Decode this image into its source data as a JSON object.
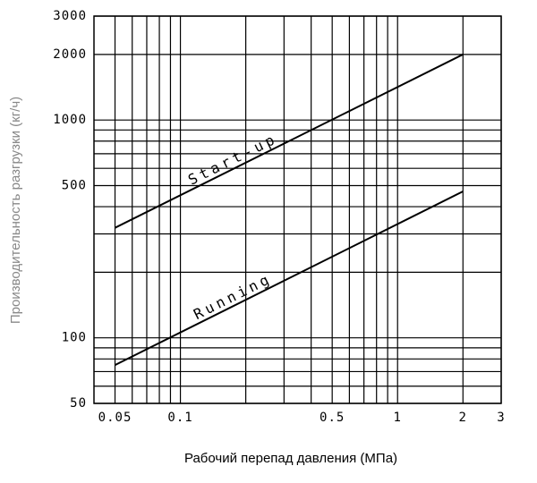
{
  "chart_data": {
    "type": "line",
    "x_label": "Рабочий перепад давления (МПа)",
    "y_label": "Производительность разгрузки (кг/ч)",
    "log_x": true,
    "log_y": true,
    "grid": true,
    "xlim": [
      0.04,
      3
    ],
    "ylim": [
      50,
      3000
    ],
    "xticks": [
      0.05,
      0.1,
      0.5,
      1,
      2,
      3
    ],
    "yticks": [
      50,
      100,
      500,
      1000,
      2000,
      3000
    ],
    "xgrid": [
      0.05,
      0.06,
      0.07,
      0.08,
      0.09,
      0.1,
      0.2,
      0.3,
      0.4,
      0.5,
      0.6,
      0.7,
      0.8,
      0.9,
      1,
      2,
      3
    ],
    "ygrid": [
      50,
      60,
      70,
      80,
      90,
      100,
      200,
      300,
      400,
      500,
      600,
      700,
      800,
      900,
      1000,
      2000,
      3000
    ],
    "series": [
      {
        "name": "Start-up",
        "color": "#000000",
        "x": [
          0.05,
          2
        ],
        "values": [
          320,
          2000
        ]
      },
      {
        "name": "Running",
        "color": "#000000",
        "x": [
          0.05,
          2
        ],
        "values": [
          75,
          470
        ]
      }
    ]
  }
}
